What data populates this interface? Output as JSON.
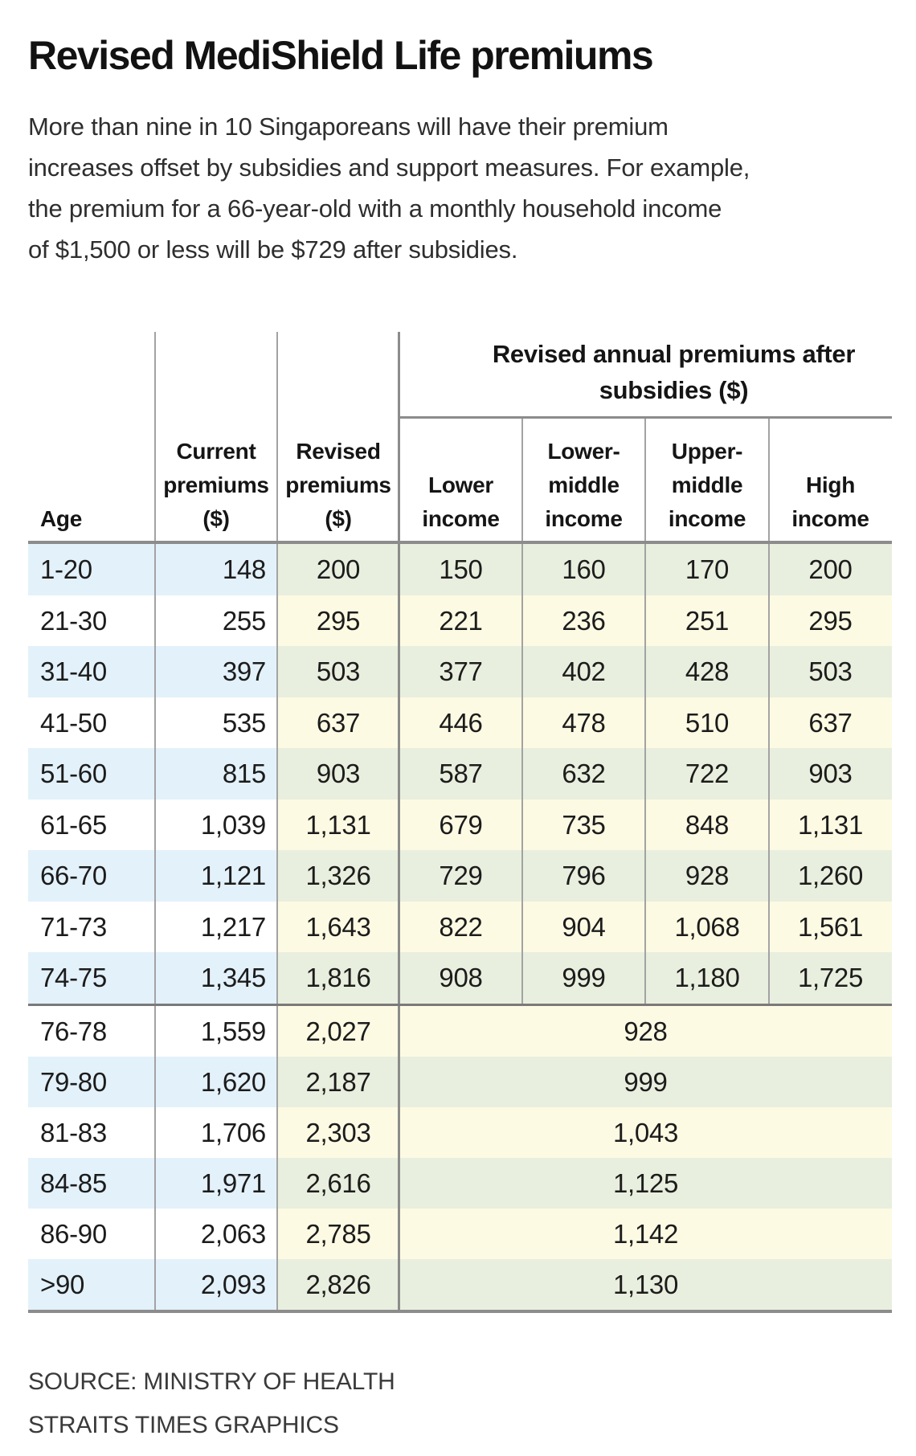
{
  "title": "Revised MediShield Life premiums",
  "intro": {
    "lines": [
      "More than nine in 10 Singaporeans will have their premium",
      "increases offset by subsidies and support measures. For example,",
      "the premium for a 66-year-old with a monthly household income",
      "of $1,500 or less will be $729 after subsidies."
    ]
  },
  "table": {
    "group_header_lines": [
      "Revised annual premiums after",
      "subsidies ($)"
    ],
    "column_header_lines": [
      [
        "Age"
      ],
      [
        "Current",
        "premiums",
        "($)"
      ],
      [
        "Revised",
        "premiums",
        "($)"
      ],
      [
        "Lower",
        "income"
      ],
      [
        "Lower-",
        "middle",
        "income"
      ],
      [
        "Upper-",
        "middle",
        "income"
      ],
      [
        "High",
        "income"
      ]
    ]
  },
  "source": {
    "line1": "SOURCE: MINISTRY OF HEALTH",
    "line2": "STRAITS TIMES GRAPHICS"
  },
  "colors": {
    "row_blue": "#e3f1fa",
    "row_green": "#e9efde",
    "row_yellow": "#fdfae3",
    "row_white": "#ffffff",
    "line_gray": "#a3a3a3",
    "line_dark": "#8c8c8c",
    "separator_dark": "#7a7a7a",
    "text": "#1c1c1c"
  },
  "chart_data": {
    "type": "table",
    "title": "Revised MediShield Life premiums",
    "columns": [
      "Age",
      "Current premiums ($)",
      "Revised premiums ($)",
      "Lower income",
      "Lower-middle income",
      "Upper-middle income",
      "High income"
    ],
    "column_group": {
      "label": "Revised annual premiums after subsidies ($)",
      "spans": [
        "Lower income",
        "Lower-middle income",
        "Upper-middle income",
        "High income"
      ]
    },
    "rows": [
      [
        "1-20",
        "148",
        "200",
        "150",
        "160",
        "170",
        "200"
      ],
      [
        "21-30",
        "255",
        "295",
        "221",
        "236",
        "251",
        "295"
      ],
      [
        "31-40",
        "397",
        "503",
        "377",
        "402",
        "428",
        "503"
      ],
      [
        "41-50",
        "535",
        "637",
        "446",
        "478",
        "510",
        "637"
      ],
      [
        "51-60",
        "815",
        "903",
        "587",
        "632",
        "722",
        "903"
      ],
      [
        "61-65",
        "1,039",
        "1,131",
        "679",
        "735",
        "848",
        "1,131"
      ],
      [
        "66-70",
        "1,121",
        "1,326",
        "729",
        "796",
        "928",
        "1,260"
      ],
      [
        "71-73",
        "1,217",
        "1,643",
        "822",
        "904",
        "1,068",
        "1,561"
      ],
      [
        "74-75",
        "1,345",
        "1,816",
        "908",
        "999",
        "1,180",
        "1,725"
      ]
    ],
    "merged_rows": [
      [
        "76-78",
        "1,559",
        "2,027",
        "928"
      ],
      [
        "79-80",
        "1,620",
        "2,187",
        "999"
      ],
      [
        "81-83",
        "1,706",
        "2,303",
        "1,043"
      ],
      [
        "84-85",
        "1,971",
        "2,616",
        "1,125"
      ],
      [
        "86-90",
        "2,063",
        "2,785",
        "1,142"
      ],
      [
        ">90",
        "2,093",
        "2,826",
        "1,130"
      ]
    ],
    "merged_rows_note": "For ages 76 and above, a single after-subsidies premium spans all four income groups"
  }
}
